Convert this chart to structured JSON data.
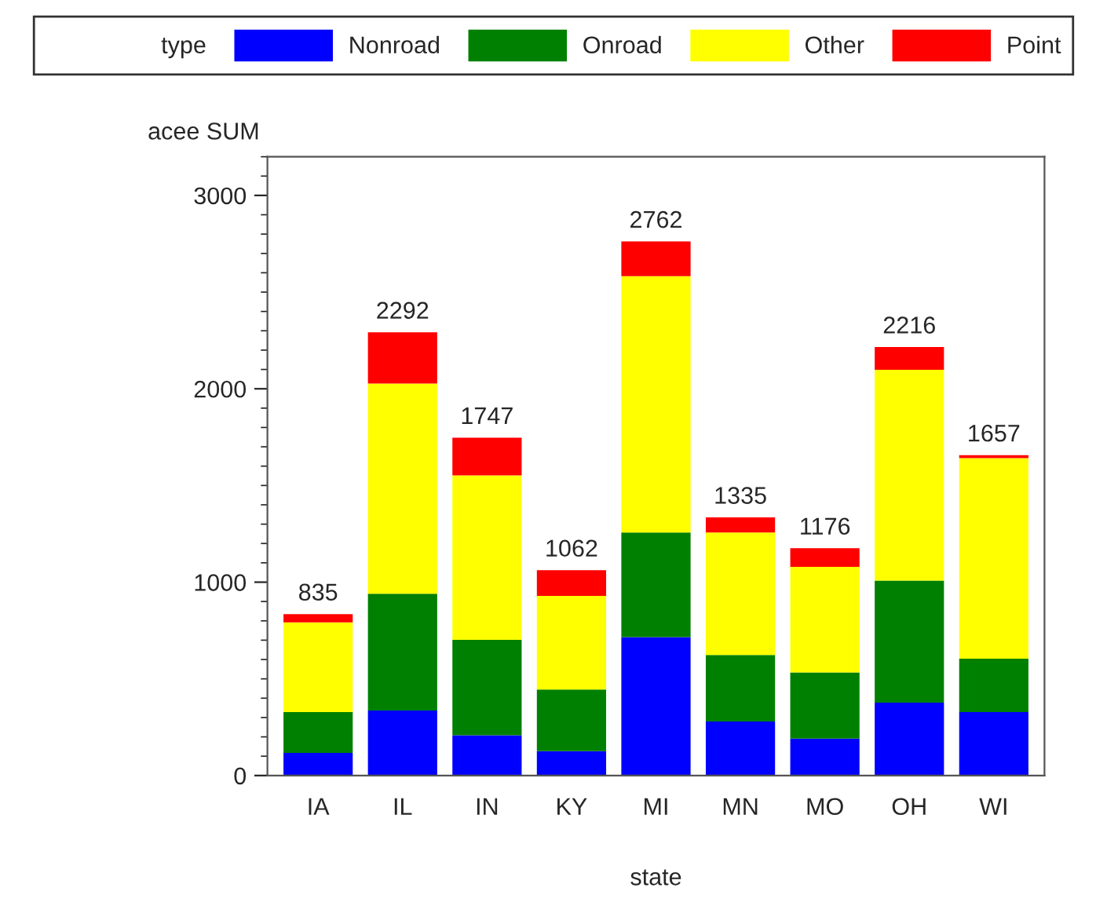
{
  "chart_data": {
    "type": "bar",
    "stacked": true,
    "xlabel": "state",
    "ylabel": "acee SUM",
    "legend_title": "type",
    "legend": "top",
    "categories": [
      "IA",
      "IL",
      "IN",
      "KY",
      "MI",
      "MN",
      "MO",
      "OH",
      "WI"
    ],
    "series": [
      {
        "name": "Nonroad",
        "color": "#0000ff",
        "values": [
          117,
          336,
          208,
          126,
          716,
          279,
          191,
          377,
          328
        ]
      },
      {
        "name": "Onroad",
        "color": "#008000",
        "values": [
          211,
          604,
          494,
          319,
          541,
          344,
          342,
          631,
          276
        ]
      },
      {
        "name": "Other",
        "color": "#ffff00",
        "values": [
          464,
          1087,
          850,
          484,
          1325,
          634,
          546,
          1090,
          1038
        ]
      },
      {
        "name": "Point",
        "color": "#ff0000",
        "values": [
          43,
          265,
          195,
          133,
          180,
          78,
          97,
          118,
          15
        ]
      }
    ],
    "totals": [
      "835",
      "2292",
      "1747",
      "1062",
      "2762",
      "1335",
      "1176",
      "2216",
      "1657"
    ],
    "ylim": [
      0,
      3200
    ],
    "yticks": [
      0,
      1000,
      2000,
      3000
    ],
    "grid": false
  }
}
